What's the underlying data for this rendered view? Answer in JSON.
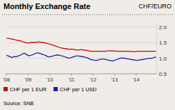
{
  "chart_data": {
    "type": "line",
    "title": "Monthly Exchange Rate",
    "subtitle": "CHF/EURO",
    "annotations": [
      "Source: SNB"
    ],
    "categories": [
      "'08",
      null,
      null,
      null,
      null,
      null,
      null,
      null,
      null,
      null,
      null,
      null,
      "'09",
      null,
      null,
      null,
      null,
      null,
      null,
      null,
      null,
      null,
      null,
      null,
      "'10",
      null,
      null,
      null,
      null,
      null,
      null,
      null,
      null,
      null,
      null,
      null,
      "'11",
      null,
      null,
      null,
      null,
      null,
      null,
      null,
      null,
      null,
      null,
      null,
      "'12",
      null,
      null,
      null,
      null,
      null,
      null,
      null,
      null,
      null,
      null,
      null,
      "'13",
      null,
      null,
      null,
      null,
      null,
      null,
      null,
      null,
      null,
      null,
      null,
      "'14",
      null,
      null,
      null,
      null,
      null,
      null,
      null,
      null,
      null,
      null,
      null
    ],
    "series": [
      {
        "name": "CHF per 1 EUR",
        "color": "#cc0000",
        "values": [
          1.63,
          1.63,
          1.62,
          1.61,
          1.6,
          1.58,
          1.57,
          1.56,
          1.55,
          1.52,
          1.51,
          1.49,
          1.48,
          1.49,
          1.5,
          1.51,
          1.5,
          1.51,
          1.52,
          1.51,
          1.5,
          1.49,
          1.48,
          1.46,
          1.45,
          1.43,
          1.41,
          1.39,
          1.37,
          1.35,
          1.33,
          1.32,
          1.31,
          1.3,
          1.29,
          1.28,
          1.29,
          1.28,
          1.27,
          1.26,
          1.26,
          1.27,
          1.27,
          1.26,
          1.25,
          1.24,
          1.23,
          1.22,
          1.22,
          1.22,
          1.22,
          1.22,
          1.22,
          1.22,
          1.22,
          1.22,
          1.23,
          1.23,
          1.23,
          1.23,
          1.23,
          1.22,
          1.22,
          1.22,
          1.22,
          1.22,
          1.22,
          1.22,
          1.22,
          1.21,
          1.21,
          1.21,
          1.21,
          1.22,
          1.22,
          1.22,
          1.22,
          1.22,
          1.22,
          1.22,
          1.22,
          1.22,
          1.22,
          1.22
        ]
      },
      {
        "name": "CHF per 1 USD",
        "color": "#1a1aaa",
        "values": [
          1.09,
          1.07,
          1.04,
          1.02,
          1.05,
          1.04,
          1.06,
          1.08,
          1.1,
          1.14,
          1.16,
          1.12,
          1.08,
          1.08,
          1.1,
          1.12,
          1.15,
          1.17,
          1.16,
          1.14,
          1.12,
          1.1,
          1.08,
          1.04,
          1.04,
          1.06,
          1.07,
          1.09,
          1.1,
          1.1,
          1.08,
          1.07,
          1.05,
          1.03,
          1.01,
          1.0,
          1.02,
          1.04,
          1.06,
          1.07,
          1.07,
          1.06,
          1.05,
          1.04,
          1.02,
          1.01,
          0.98,
          0.95,
          0.94,
          0.93,
          0.93,
          0.94,
          0.96,
          0.97,
          0.97,
          0.96,
          0.94,
          0.93,
          0.92,
          0.91,
          0.93,
          0.95,
          0.97,
          0.99,
          1.01,
          1.0,
          0.99,
          0.98,
          0.97,
          0.96,
          0.95,
          0.94,
          0.93,
          0.93,
          0.94,
          0.95,
          0.96,
          0.97,
          0.98,
          0.99,
          0.99,
          1.0,
          1.02,
          1.04
        ]
      }
    ],
    "ylim": [
      0.5,
      2.1
    ],
    "yticks": [
      0.5,
      {
        "value": 1,
        "label": "1.0"
      },
      1.5,
      {
        "value": 2,
        "label": "2.0"
      }
    ],
    "grid": true,
    "legend": "bottom"
  }
}
